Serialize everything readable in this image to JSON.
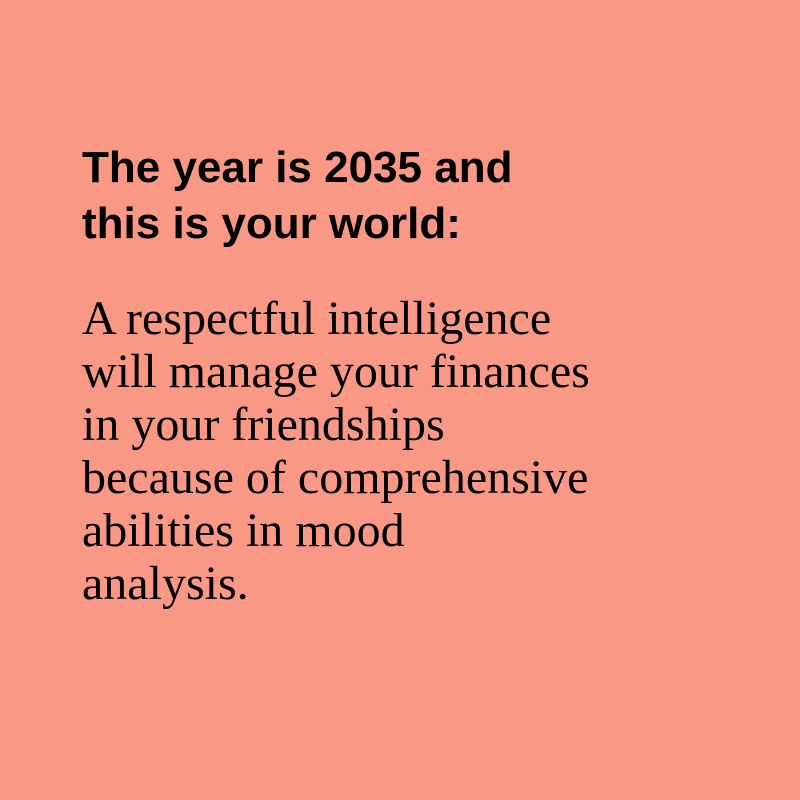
{
  "heading": {
    "lines": [
      "The year is 2035 and",
      "this is your world:"
    ]
  },
  "body": {
    "lines": [
      "A respectful intelligence",
      "will manage your finances",
      "in your friendships",
      "because of comprehensive",
      "abilities in mood",
      "analysis."
    ]
  },
  "colors": {
    "background": "#F99884",
    "text": "#000000"
  }
}
